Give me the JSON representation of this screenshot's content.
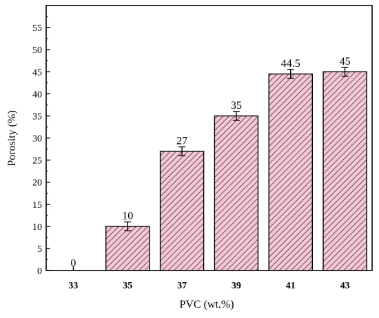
{
  "chart_data": {
    "type": "bar",
    "categories": [
      "33",
      "35",
      "37",
      "39",
      "41",
      "43"
    ],
    "values": [
      0,
      10,
      27,
      35,
      44.5,
      45
    ],
    "errors": [
      0,
      1,
      1,
      1,
      1,
      1
    ],
    "data_labels": [
      "0",
      "10",
      "27",
      "35",
      "44.5",
      "45"
    ],
    "xlabel": "PVC (wt.%)",
    "ylabel": "Porosity (%)",
    "ylim": [
      0,
      60
    ],
    "yticks": [
      0,
      5,
      10,
      15,
      20,
      25,
      30,
      35,
      40,
      45,
      50,
      55
    ],
    "grid": false,
    "bar_fill": "#f7c6d9",
    "hatch_color": "#222222",
    "edge_color": "#000000"
  }
}
